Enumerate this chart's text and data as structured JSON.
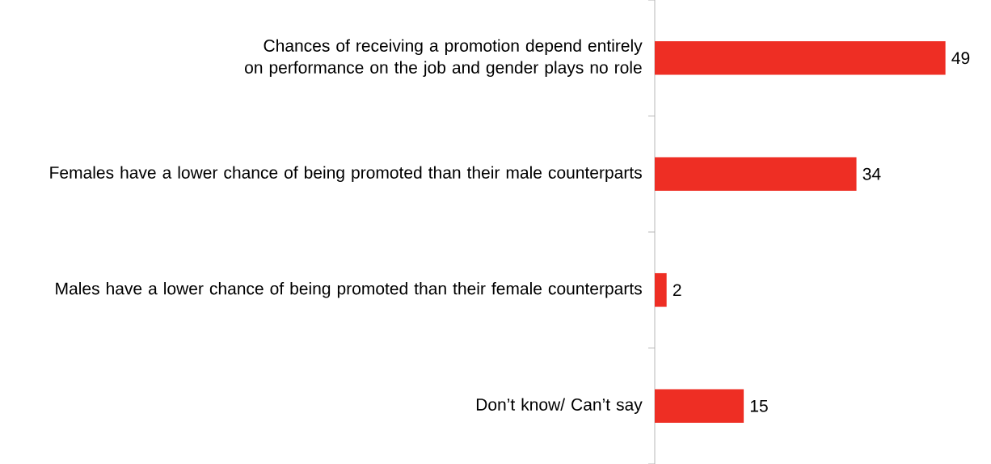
{
  "chart_data": {
    "type": "bar",
    "orientation": "horizontal",
    "categories": [
      "Chances of receiving a promotion depend entirely on performance on the job and gender plays no role",
      "Females have a lower chance of being promoted than their male counterparts",
      "Males have a lower chance of being promoted than their female counterparts",
      "Don’t know/ Can’t say"
    ],
    "values": [
      49,
      34,
      2,
      15
    ],
    "color": "#ee2e24",
    "data_labels": true
  }
}
